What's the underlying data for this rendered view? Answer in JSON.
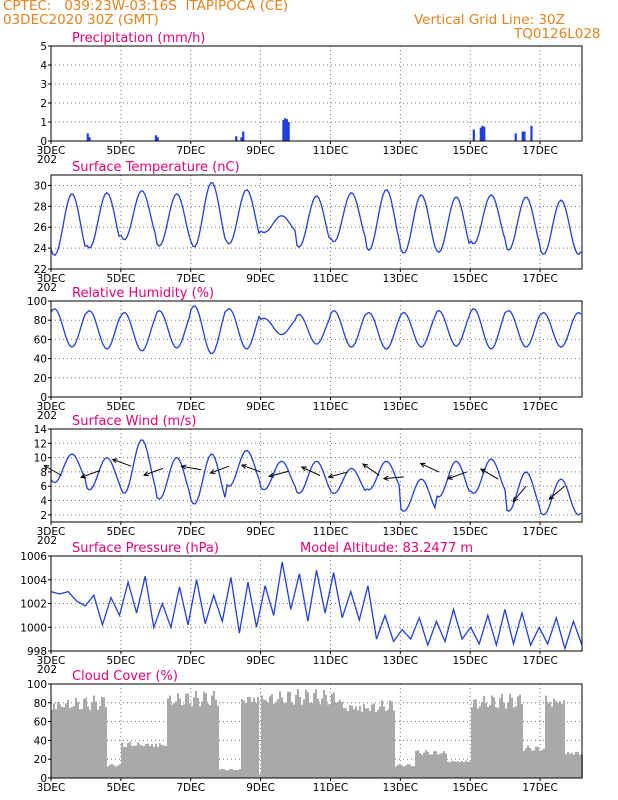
{
  "header": {
    "source": "CPTEC:",
    "coords": "039:23W-03:16S",
    "location": "ITAPIPOCA (CE)",
    "run": "03DEC2020 30Z (GMT)",
    "grid_note": "Vertical Grid Line: 30Z",
    "code": "TQ0126L028",
    "year_fragment": "202"
  },
  "colors": {
    "header": "#e6821e",
    "title": "#e6007a",
    "line": "#1f3fe0",
    "bar": "#1f3fe0",
    "cloud": "#a9a9a9",
    "arrow": "#000000"
  },
  "x_labels": [
    "3DEC",
    "5DEC",
    "7DEC",
    "9DEC",
    "11DEC",
    "13DEC",
    "15DEC",
    "17DEC"
  ],
  "panels": [
    {
      "id": "precip",
      "title": "Precipitation  (mm/h)",
      "yticks": [
        "0",
        "1",
        "2",
        "3",
        "4",
        "5"
      ]
    },
    {
      "id": "temp",
      "title": "Surface Temperature (nC)",
      "yticks": [
        "22",
        "24",
        "26",
        "28",
        "30"
      ]
    },
    {
      "id": "rh",
      "title": "Relative Humidity (%)",
      "yticks": [
        "0",
        "20",
        "40",
        "60",
        "80",
        "100"
      ]
    },
    {
      "id": "wind",
      "title": "Surface Wind  (m/s)",
      "yticks": [
        "2",
        "4",
        "6",
        "8",
        "10",
        "12",
        "14"
      ]
    },
    {
      "id": "press",
      "title": "Surface Pressure (hPa)",
      "extra": "Model Altitude: 83.2477 m",
      "yticks": [
        "998",
        "1000",
        "1002",
        "1004",
        "1006"
      ]
    },
    {
      "id": "cloud",
      "title": "Cloud Cover (%)",
      "yticks": [
        "0",
        "20",
        "40",
        "60",
        "80",
        "100"
      ]
    }
  ],
  "chart_data": [
    {
      "type": "bar",
      "title": "Precipitation  (mm/h)",
      "ylim": [
        0,
        5
      ],
      "x": [
        4.05,
        4.1,
        6.0,
        6.05,
        8.3,
        8.45,
        8.5,
        9.65,
        9.7,
        9.75,
        9.8,
        15.1,
        15.3,
        15.35,
        15.4,
        16.3,
        16.5,
        16.55,
        16.75
      ],
      "values": [
        0.4,
        0.2,
        0.3,
        0.2,
        0.25,
        0.2,
        0.5,
        1.1,
        1.2,
        1.15,
        1.0,
        0.6,
        0.7,
        0.8,
        0.75,
        0.4,
        0.5,
        0.5,
        0.8
      ]
    },
    {
      "type": "line",
      "title": "Surface Temperature (nC)",
      "ylim": [
        22,
        31
      ],
      "x_range_days": [
        3,
        18.2
      ],
      "min_series": [
        23.3,
        24.0,
        24.8,
        24.2,
        24.1,
        24.4,
        25.5,
        24.1,
        24.6,
        23.8,
        23.5,
        23.6,
        24.4,
        23.8,
        23.4
      ],
      "max_series": [
        29.2,
        29.3,
        29.5,
        29.2,
        30.3,
        29.6,
        27.1,
        29.0,
        29.3,
        29.6,
        29.1,
        28.9,
        29.1,
        28.9,
        28.6
      ]
    },
    {
      "type": "line",
      "title": "Relative Humidity (%)",
      "ylim": [
        0,
        100
      ],
      "min_series": [
        52,
        50,
        48,
        51,
        45,
        50,
        65,
        55,
        52,
        50,
        52,
        53,
        50,
        52,
        52
      ],
      "max_series": [
        92,
        90,
        88,
        90,
        95,
        92,
        82,
        86,
        90,
        88,
        88,
        90,
        92,
        90,
        88
      ]
    },
    {
      "type": "line",
      "title": "Surface Wind  (m/s)",
      "ylim": [
        1,
        14
      ],
      "min_series": [
        6.5,
        5.5,
        5.0,
        4.2,
        3.5,
        6.0,
        5.5,
        5.0,
        5.0,
        5.5,
        2.5,
        4.5,
        5.0,
        2.5,
        2.0
      ],
      "max_series": [
        10.5,
        10.0,
        12.5,
        10.0,
        10.5,
        11.0,
        9.5,
        9.5,
        8.5,
        9.5,
        7.0,
        9.5,
        9.8,
        8.0,
        7.0
      ],
      "arrows": [
        {
          "day": 3.3,
          "speed": 7.5,
          "dir": 210
        },
        {
          "day": 4.4,
          "speed": 8.2,
          "dir": 160
        },
        {
          "day": 5.3,
          "speed": 8.8,
          "dir": 200
        },
        {
          "day": 6.2,
          "speed": 8.5,
          "dir": 160
        },
        {
          "day": 7.3,
          "speed": 8.3,
          "dir": 190
        },
        {
          "day": 8.1,
          "speed": 8.8,
          "dir": 160
        },
        {
          "day": 9.0,
          "speed": 8.0,
          "dir": 200
        },
        {
          "day": 9.8,
          "speed": 8.1,
          "dir": 165
        },
        {
          "day": 10.7,
          "speed": 7.5,
          "dir": 205
        },
        {
          "day": 11.5,
          "speed": 8.0,
          "dir": 165
        },
        {
          "day": 12.4,
          "speed": 7.5,
          "dir": 215
        },
        {
          "day": 13.1,
          "speed": 7.3,
          "dir": 175
        },
        {
          "day": 14.1,
          "speed": 8.0,
          "dir": 205
        },
        {
          "day": 14.9,
          "speed": 8.0,
          "dir": 160
        },
        {
          "day": 15.8,
          "speed": 7.0,
          "dir": 210
        },
        {
          "day": 16.6,
          "speed": 6.0,
          "dir": 130
        },
        {
          "day": 17.7,
          "speed": 6.0,
          "dir": 140
        }
      ]
    },
    {
      "type": "line",
      "title": "Surface Pressure (hPa)",
      "ylim": [
        998,
        1006
      ],
      "series": [
        1003.0,
        1002.8,
        1003.0,
        1002.2,
        1001.8,
        1002.7,
        1000.2,
        1002.5,
        1001.0,
        1003.8,
        1001.2,
        1004.3,
        1000.0,
        1002.0,
        1000.0,
        1003.4,
        1000.2,
        1004.0,
        1000.3,
        1002.7,
        1000.5,
        1004.2,
        999.5,
        1003.8,
        1000.0,
        1003.5,
        1001.0,
        1005.5,
        1001.5,
        1004.5,
        1000.5,
        1004.8,
        1001.2,
        1004.6,
        1000.8,
        1003.0,
        1000.6,
        1003.5,
        999.0,
        1001.0,
        998.8,
        999.8,
        999.0,
        1000.8,
        998.5,
        1000.5,
        998.8,
        1001.5,
        999.0,
        1000.0,
        998.6,
        1001.0,
        998.5,
        1001.5,
        998.6,
        1001.2,
        998.5,
        1000.0,
        998.6,
        1000.8,
        998.2,
        1000.5,
        998.5
      ]
    },
    {
      "type": "area",
      "title": "Cloud Cover (%)",
      "ylim": [
        0,
        100
      ],
      "segments": [
        {
          "from": 3.0,
          "to": 4.55,
          "level": 88
        },
        {
          "from": 4.55,
          "to": 5.0,
          "level": 15
        },
        {
          "from": 5.0,
          "to": 6.3,
          "level": 40
        },
        {
          "from": 6.3,
          "to": 7.8,
          "level": 93
        },
        {
          "from": 7.8,
          "to": 8.4,
          "level": 10
        },
        {
          "from": 8.4,
          "to": 8.9,
          "level": 95
        },
        {
          "from": 8.9,
          "to": 9.0,
          "level": 5
        },
        {
          "from": 9.0,
          "to": 10.2,
          "level": 95
        },
        {
          "from": 10.2,
          "to": 11.3,
          "level": 95
        },
        {
          "from": 11.3,
          "to": 12.8,
          "level": 85
        },
        {
          "from": 12.8,
          "to": 13.4,
          "level": 15
        },
        {
          "from": 13.4,
          "to": 14.3,
          "level": 30
        },
        {
          "from": 14.3,
          "to": 15.0,
          "level": 20
        },
        {
          "from": 15.0,
          "to": 16.5,
          "level": 90
        },
        {
          "from": 16.5,
          "to": 17.1,
          "level": 35
        },
        {
          "from": 17.1,
          "to": 17.7,
          "level": 92
        },
        {
          "from": 17.7,
          "to": 18.2,
          "level": 30
        }
      ]
    }
  ]
}
